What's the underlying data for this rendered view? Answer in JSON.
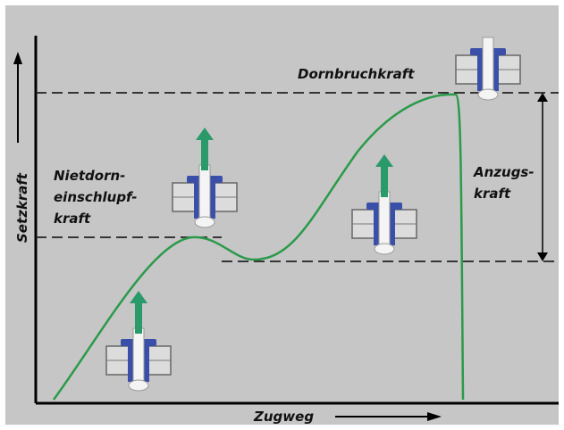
{
  "y_label": "Setzkraft",
  "x_label": "Zugweg",
  "annotations": {
    "nietdorn": [
      "Nietdorn-",
      "einschlupf-",
      "kraft"
    ],
    "dornbruch": "Dornbruchkraft",
    "anzug": [
      "Anzugs-",
      "kraft"
    ]
  }
}
